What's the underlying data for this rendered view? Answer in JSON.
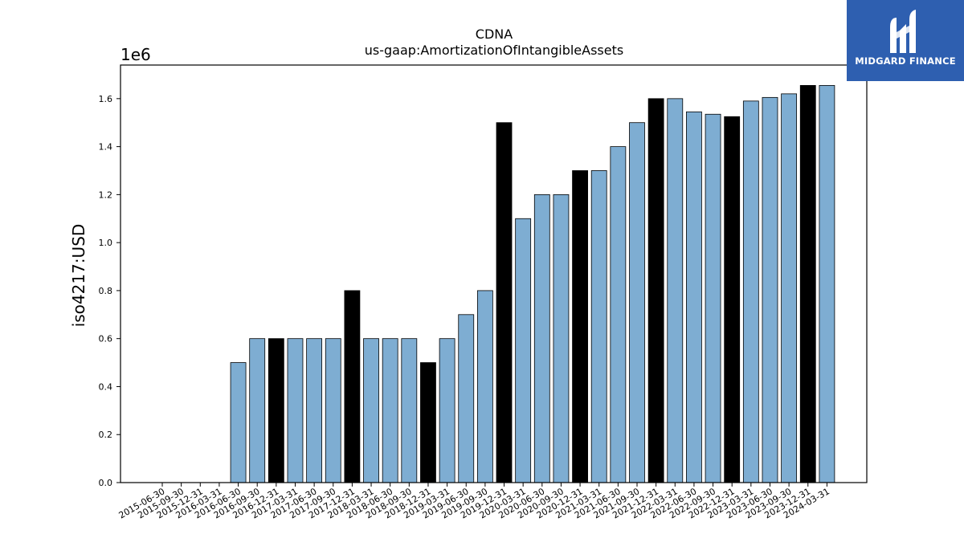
{
  "logo": {
    "name": "MIDGARD FINANCE",
    "icon": "midgard-logo-icon"
  },
  "chart_data": {
    "type": "bar",
    "title": "CDNA",
    "subtitle": "us-gaap:AmortizationOfIntangibleAssets",
    "ylabel": "iso4217:USD",
    "xlabel": "",
    "y_offset_label": "1e6",
    "ylim": [
      0,
      1740000
    ],
    "yticks": [
      0,
      200000,
      400000,
      600000,
      800000,
      1000000,
      1200000,
      1400000,
      1600000
    ],
    "ytick_labels": [
      "0.0",
      "0.2",
      "0.4",
      "0.6",
      "0.8",
      "1.0",
      "1.2",
      "1.4",
      "1.6"
    ],
    "grid": false,
    "colors": {
      "quarter": "#7eadd2",
      "annual": "#000000",
      "edge": "#000000"
    },
    "categories": [
      "2015-06-30",
      "2015-09-30",
      "2015-12-31",
      "2016-03-31",
      "2016-06-30",
      "2016-09-30",
      "2016-12-31",
      "2017-03-31",
      "2017-06-30",
      "2017-09-30",
      "2017-12-31",
      "2018-03-31",
      "2018-06-30",
      "2018-09-30",
      "2018-12-31",
      "2019-03-31",
      "2019-06-30",
      "2019-09-30",
      "2019-12-31",
      "2020-03-31",
      "2020-06-30",
      "2020-09-30",
      "2020-12-31",
      "2021-03-31",
      "2021-06-30",
      "2021-09-30",
      "2021-12-31",
      "2022-03-31",
      "2022-06-30",
      "2022-09-30",
      "2022-12-31",
      "2023-03-31",
      "2023-06-30",
      "2023-09-30",
      "2023-12-31",
      "2024-03-31"
    ],
    "values": [
      0,
      0,
      0,
      0,
      500000,
      600000,
      600000,
      600000,
      600000,
      600000,
      800000,
      600000,
      600000,
      600000,
      500000,
      600000,
      700000,
      800000,
      1500000,
      1100000,
      1200000,
      1200000,
      1300000,
      1300000,
      1400000,
      1500000,
      1600000,
      1600000,
      1545000,
      1535000,
      1525000,
      1590000,
      1605000,
      1620000,
      1655000,
      1655000
    ],
    "bar_colors": [
      "quarter",
      "quarter",
      "quarter",
      "quarter",
      "quarter",
      "quarter",
      "annual",
      "quarter",
      "quarter",
      "quarter",
      "annual",
      "quarter",
      "quarter",
      "quarter",
      "annual",
      "quarter",
      "quarter",
      "quarter",
      "annual",
      "quarter",
      "quarter",
      "quarter",
      "annual",
      "quarter",
      "quarter",
      "quarter",
      "annual",
      "quarter",
      "quarter",
      "quarter",
      "annual",
      "quarter",
      "quarter",
      "quarter",
      "annual",
      "quarter"
    ]
  }
}
